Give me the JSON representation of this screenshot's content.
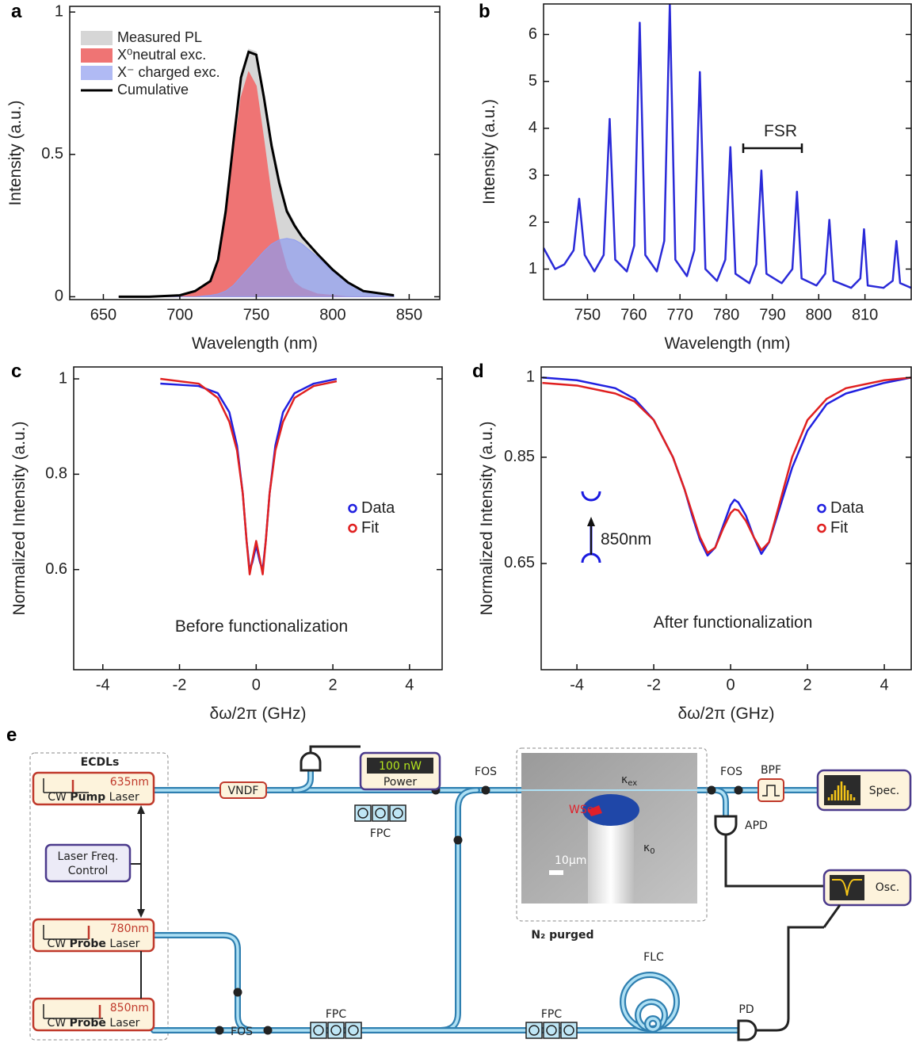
{
  "chart_data": [
    {
      "type": "area",
      "panel": "a",
      "xlabel": "Wavelength (nm)",
      "ylabel": "Intensity (a.u.)",
      "x": [
        660,
        680,
        700,
        710,
        720,
        725,
        730,
        735,
        740,
        745,
        750,
        755,
        760,
        765,
        770,
        775,
        780,
        790,
        800,
        810,
        820,
        840
      ],
      "series": [
        {
          "name": "Measured PL",
          "kind": "area",
          "color": "#d6d6d6",
          "opacity": 1,
          "values": [
            0,
            0,
            0.005,
            0.02,
            0.055,
            0.13,
            0.3,
            0.55,
            0.78,
            0.87,
            0.86,
            0.72,
            0.55,
            0.42,
            0.31,
            0.26,
            0.21,
            0.15,
            0.095,
            0.05,
            0.02,
            0.005
          ]
        },
        {
          "name": "X⁰neutral exc.",
          "kind": "area",
          "color": "#ef7474",
          "opacity": 1,
          "values": [
            0,
            0,
            0.005,
            0.02,
            0.05,
            0.12,
            0.28,
            0.5,
            0.7,
            0.79,
            0.74,
            0.55,
            0.35,
            0.2,
            0.1,
            0.05,
            0.03,
            0.01,
            0.005,
            0,
            0,
            0
          ]
        },
        {
          "name": "X⁻ charged exc.",
          "kind": "area",
          "color": "#8f9cf0",
          "opacity": 0.7,
          "values": [
            0,
            0,
            0,
            0,
            0.005,
            0.01,
            0.02,
            0.04,
            0.07,
            0.1,
            0.13,
            0.16,
            0.185,
            0.2,
            0.205,
            0.2,
            0.185,
            0.14,
            0.09,
            0.05,
            0.02,
            0.005
          ]
        },
        {
          "name": "Cumulative",
          "kind": "line",
          "color": "#000000",
          "opacity": 1,
          "values": [
            0,
            0,
            0.005,
            0.02,
            0.055,
            0.13,
            0.3,
            0.54,
            0.77,
            0.86,
            0.85,
            0.7,
            0.53,
            0.4,
            0.3,
            0.25,
            0.21,
            0.15,
            0.095,
            0.05,
            0.02,
            0.005
          ]
        }
      ],
      "xlim": [
        628,
        870
      ],
      "xticks": [
        650,
        700,
        750,
        800,
        850
      ],
      "ylim": [
        -0.01,
        1.02
      ],
      "yticks": [
        0,
        0.5,
        1
      ],
      "legend": "upper left"
    },
    {
      "type": "line",
      "panel": "b",
      "xlabel": "Wavelength (nm)",
      "ylabel": "Intensity (a.u.)",
      "annotations": [
        "FSR"
      ],
      "x": [
        740.5,
        743,
        745,
        747,
        748.2,
        749.4,
        751.5,
        753.5,
        754.8,
        756,
        758.5,
        760.1,
        761.3,
        762.5,
        765,
        766.6,
        767.8,
        769,
        771.5,
        773.1,
        774.3,
        775.5,
        778,
        779.8,
        780.9,
        782,
        785,
        786.5,
        787.6,
        788.7,
        792,
        794.3,
        795.3,
        796.3,
        799.5,
        801.4,
        802.3,
        803.2,
        807,
        809,
        809.8,
        810.6,
        814,
        816,
        816.8,
        817.6,
        820
      ],
      "series": [
        {
          "color": "#2a2ad8",
          "values": [
            1.45,
            1.0,
            1.1,
            1.4,
            2.5,
            1.3,
            0.95,
            1.3,
            4.2,
            1.2,
            0.95,
            1.5,
            6.25,
            1.3,
            0.95,
            1.6,
            6.65,
            1.2,
            0.85,
            1.4,
            5.2,
            1.0,
            0.75,
            1.2,
            3.6,
            0.9,
            0.7,
            1.1,
            3.1,
            0.9,
            0.7,
            1.0,
            2.65,
            0.8,
            0.65,
            0.9,
            2.05,
            0.75,
            0.6,
            0.8,
            1.85,
            0.65,
            0.6,
            0.75,
            1.6,
            0.7,
            0.6
          ]
        }
      ],
      "xlim": [
        740.5,
        820
      ],
      "xticks": [
        750,
        760,
        770,
        780,
        790,
        800,
        810
      ],
      "ylim": [
        0.35,
        6.65
      ],
      "yticks": [
        1,
        2,
        3,
        4,
        5,
        6
      ]
    },
    {
      "type": "line",
      "panel": "c",
      "xlabel": "δω/2π  (GHz)",
      "ylabel": "Normalized Intensity (a.u.)",
      "annotations": [
        "Before functionalization"
      ],
      "x": [
        -2.5,
        -1.5,
        -1,
        -0.7,
        -0.5,
        -0.35,
        -0.25,
        -0.17,
        -0.1,
        0,
        0.1,
        0.17,
        0.25,
        0.35,
        0.5,
        0.7,
        1,
        1.5,
        2.1
      ],
      "series": [
        {
          "name": "Data",
          "color": "#2020e0",
          "values": [
            0.99,
            0.985,
            0.97,
            0.93,
            0.86,
            0.76,
            0.66,
            0.6,
            0.615,
            0.65,
            0.615,
            0.6,
            0.66,
            0.76,
            0.86,
            0.93,
            0.97,
            0.99,
            1.0
          ]
        },
        {
          "name": "Fit",
          "color": "#e02020",
          "values": [
            1.0,
            0.99,
            0.96,
            0.91,
            0.85,
            0.76,
            0.66,
            0.59,
            0.62,
            0.66,
            0.62,
            0.59,
            0.66,
            0.76,
            0.85,
            0.91,
            0.96,
            0.985,
            0.995
          ]
        }
      ],
      "xlim": [
        -4.76,
        4.85
      ],
      "xticks": [
        -4,
        -2,
        0,
        2,
        4
      ],
      "ylim": [
        0.39,
        1.025
      ],
      "yticks": [
        0.6,
        0.8,
        1
      ],
      "legend": "center right"
    },
    {
      "type": "line",
      "panel": "d",
      "xlabel": "δω/2π  (GHz)",
      "ylabel": "Normalized Intensity (a.u.)",
      "annotations": [
        "850nm",
        "After functionalization"
      ],
      "x": [
        -4.9,
        -4,
        -3,
        -2.5,
        -2,
        -1.5,
        -1.2,
        -1,
        -0.8,
        -0.6,
        -0.4,
        -0.2,
        0,
        0.1,
        0.2,
        0.4,
        0.6,
        0.8,
        1.0,
        1.3,
        1.6,
        2,
        2.5,
        3,
        4,
        4.7
      ],
      "series": [
        {
          "name": "Data",
          "color": "#2020e0",
          "values": [
            1.0,
            0.995,
            0.98,
            0.96,
            0.92,
            0.85,
            0.79,
            0.74,
            0.695,
            0.665,
            0.68,
            0.72,
            0.76,
            0.77,
            0.765,
            0.74,
            0.7,
            0.668,
            0.69,
            0.76,
            0.83,
            0.9,
            0.95,
            0.97,
            0.99,
            1.0
          ]
        },
        {
          "name": "Fit",
          "color": "#e02020",
          "values": [
            0.99,
            0.985,
            0.97,
            0.955,
            0.92,
            0.85,
            0.79,
            0.745,
            0.7,
            0.67,
            0.68,
            0.715,
            0.745,
            0.752,
            0.75,
            0.73,
            0.7,
            0.675,
            0.69,
            0.77,
            0.85,
            0.92,
            0.96,
            0.98,
            0.995,
            1.0
          ]
        }
      ],
      "xlim": [
        -4.93,
        4.7
      ],
      "xticks": [
        -4,
        -2,
        0,
        2,
        4
      ],
      "ylim": [
        0.45,
        1.02
      ],
      "yticks": [
        0.65,
        0.85,
        1
      ],
      "legend": "center right"
    }
  ],
  "diagram": {
    "panel": "e",
    "ecdl_group": "ECDLs",
    "lasers": [
      {
        "wavelength": "635nm",
        "prefix": "CW",
        "kind": "Pump",
        "suffix": "Laser"
      },
      {
        "wavelength": "780nm",
        "prefix": "CW",
        "kind": "Probe",
        "suffix": "Laser"
      },
      {
        "wavelength": "850nm",
        "prefix": "CW",
        "kind": "Probe",
        "suffix": "Laser"
      }
    ],
    "freq_control": [
      "Laser Freq.",
      "Control"
    ],
    "vndf": "VNDF",
    "power_reading": "100 nW",
    "power_label": "Power",
    "fpc": [
      "FPC",
      "FPC",
      "FPC"
    ],
    "fos": [
      "FOS",
      "FOS",
      "FOS"
    ],
    "kappa_ex": {
      "symbol": "κ",
      "sub": "ex"
    },
    "kappa_0": {
      "symbol": "κ",
      "sub": "0"
    },
    "material": "WSe₂",
    "scale_bar": "10μm",
    "environment": "N₂ purged",
    "bpf": "BPF",
    "spectrometer": "Spec.",
    "apd": "APD",
    "oscilloscope": "Osc.",
    "flc": "FLC",
    "pd": "PD"
  }
}
